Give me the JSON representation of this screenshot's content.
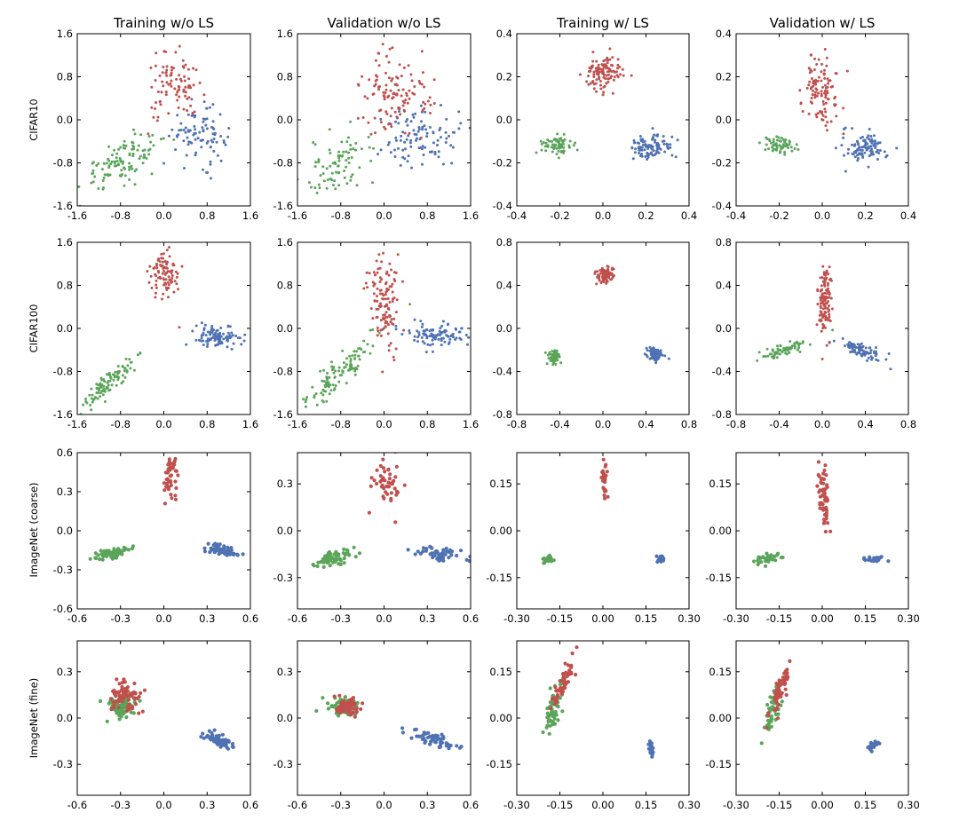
{
  "colors": {
    "red": "#c0504d",
    "blue": "#4f72b3",
    "green": "#5aa55a"
  },
  "col_titles": [
    "Training w/o LS",
    "Validation w/o LS",
    "Training w/ LS",
    "Validation w/ LS"
  ],
  "row_labels": [
    "CIFAR10",
    "CIFAR100",
    "ImageNet (coarse)",
    "ImageNet (fine)"
  ],
  "chart_data": [
    {
      "type": "scatter",
      "row": 0,
      "col": 0,
      "xlim": [
        -1.6,
        1.6
      ],
      "ylim": [
        -1.6,
        1.6
      ],
      "xticks": [
        "-1.6",
        "-0.8",
        "0.0",
        "0.8",
        "1.6"
      ],
      "yticks": [
        "1.6",
        "0.8",
        "0.0",
        "-0.8",
        "-1.6"
      ],
      "clusters": {
        "red": {
          "cx": 0.2,
          "cy": 0.6,
          "sx": 0.25,
          "sy": 0.3,
          "n": 90
        },
        "blue": {
          "cx": 0.65,
          "cy": -0.3,
          "sx": 0.25,
          "sy": 0.25,
          "n": 90
        },
        "green": {
          "cx": -0.75,
          "cy": -0.75,
          "sx": 0.4,
          "sy": 0.25,
          "rho": 0.6,
          "n": 110
        }
      }
    },
    {
      "type": "scatter",
      "row": 0,
      "col": 1,
      "xlim": [
        -1.6,
        1.6
      ],
      "ylim": [
        -1.6,
        1.6
      ],
      "xticks": [
        "-1.6",
        "-0.8",
        "0.0",
        "0.8",
        "1.6"
      ],
      "yticks": [
        "1.6",
        "0.8",
        "0.0",
        "-0.8",
        "-1.6"
      ],
      "clusters": {
        "red": {
          "cx": 0.2,
          "cy": 0.5,
          "sx": 0.3,
          "sy": 0.4,
          "n": 120
        },
        "blue": {
          "cx": 0.75,
          "cy": -0.35,
          "sx": 0.35,
          "sy": 0.3,
          "n": 100
        },
        "green": {
          "cx": -0.85,
          "cy": -0.85,
          "sx": 0.35,
          "sy": 0.3,
          "rho": 0.4,
          "n": 80
        }
      }
    },
    {
      "type": "scatter",
      "row": 0,
      "col": 2,
      "xlim": [
        -0.4,
        0.4
      ],
      "ylim": [
        -0.4,
        0.4
      ],
      "xticks": [
        "-0.4",
        "-0.2",
        "0.0",
        "0.2",
        "0.4"
      ],
      "yticks": [
        "0.4",
        "0.2",
        "0.0",
        "-0.2",
        "-0.4"
      ],
      "clusters": {
        "red": {
          "cx": 0.0,
          "cy": 0.22,
          "sx": 0.045,
          "sy": 0.045,
          "n": 110
        },
        "blue": {
          "cx": 0.22,
          "cy": -0.13,
          "sx": 0.045,
          "sy": 0.03,
          "n": 100
        },
        "green": {
          "cx": -0.22,
          "cy": -0.12,
          "sx": 0.035,
          "sy": 0.02,
          "n": 70
        }
      }
    },
    {
      "type": "scatter",
      "row": 0,
      "col": 3,
      "xlim": [
        -0.4,
        0.4
      ],
      "ylim": [
        -0.4,
        0.4
      ],
      "xticks": [
        "-0.4",
        "-0.2",
        "0.0",
        "0.2",
        "0.4"
      ],
      "yticks": [
        "0.4",
        "0.2",
        "0.0",
        "-0.2",
        "-0.4"
      ],
      "clusters": {
        "red": {
          "cx": 0.0,
          "cy": 0.15,
          "sx": 0.04,
          "sy": 0.09,
          "n": 110
        },
        "blue": {
          "cx": 0.2,
          "cy": -0.13,
          "sx": 0.05,
          "sy": 0.035,
          "n": 100
        },
        "green": {
          "cx": -0.2,
          "cy": -0.12,
          "sx": 0.04,
          "sy": 0.02,
          "n": 60
        }
      }
    },
    {
      "type": "scatter",
      "row": 1,
      "col": 0,
      "xlim": [
        -1.6,
        1.6
      ],
      "ylim": [
        -1.6,
        1.6
      ],
      "xticks": [
        "-1.6",
        "-0.8",
        "0.0",
        "0.8",
        "1.6"
      ],
      "yticks": [
        "1.6",
        "0.8",
        "0.0",
        "-0.8",
        "-1.6"
      ],
      "clusters": {
        "red": {
          "cx": 0.0,
          "cy": 1.0,
          "sx": 0.15,
          "sy": 0.22,
          "n": 90
        },
        "blue": {
          "cx": 1.0,
          "cy": -0.15,
          "sx": 0.22,
          "sy": 0.1,
          "n": 100
        },
        "green": {
          "cx": -1.0,
          "cy": -1.0,
          "sx": 0.25,
          "sy": 0.25,
          "rho": 0.9,
          "n": 100
        }
      }
    },
    {
      "type": "scatter",
      "row": 1,
      "col": 1,
      "xlim": [
        -1.6,
        1.6
      ],
      "ylim": [
        -1.6,
        1.6
      ],
      "xticks": [
        "-1.6",
        "-0.8",
        "0.0",
        "0.8",
        "1.6"
      ],
      "yticks": [
        "1.6",
        "0.8",
        "0.0",
        "-0.8",
        "-1.6"
      ],
      "clusters": {
        "red": {
          "cx": 0.0,
          "cy": 0.5,
          "sx": 0.15,
          "sy": 0.4,
          "rho": -0.3,
          "n": 120
        },
        "blue": {
          "cx": 0.95,
          "cy": -0.1,
          "sx": 0.3,
          "sy": 0.12,
          "n": 100
        },
        "green": {
          "cx": -0.85,
          "cy": -0.85,
          "sx": 0.35,
          "sy": 0.35,
          "rho": 0.92,
          "n": 110
        }
      }
    },
    {
      "type": "scatter",
      "row": 1,
      "col": 2,
      "xlim": [
        -0.8,
        0.8
      ],
      "ylim": [
        -0.8,
        0.8
      ],
      "xticks": [
        "-0.8",
        "-0.4",
        "0.0",
        "0.4",
        "0.8"
      ],
      "yticks": [
        "0.8",
        "0.4",
        "0.0",
        "-0.4",
        "-0.8"
      ],
      "clusters": {
        "red": {
          "cx": 0.02,
          "cy": 0.5,
          "sx": 0.04,
          "sy": 0.035,
          "n": 90
        },
        "blue": {
          "cx": 0.48,
          "cy": -0.24,
          "sx": 0.035,
          "sy": 0.03,
          "n": 90
        },
        "green": {
          "cx": -0.45,
          "cy": -0.26,
          "sx": 0.025,
          "sy": 0.03,
          "n": 70
        }
      }
    },
    {
      "type": "scatter",
      "row": 1,
      "col": 3,
      "xlim": [
        -0.8,
        0.8
      ],
      "ylim": [
        -0.8,
        0.8
      ],
      "xticks": [
        "-0.8",
        "-0.4",
        "0.0",
        "0.4",
        "0.8"
      ],
      "yticks": [
        "0.8",
        "0.4",
        "0.0",
        "-0.4",
        "-0.8"
      ],
      "clusters": {
        "red": {
          "cx": 0.02,
          "cy": 0.25,
          "sx": 0.035,
          "sy": 0.18,
          "n": 120
        },
        "blue": {
          "cx": 0.35,
          "cy": -0.2,
          "sx": 0.11,
          "sy": 0.05,
          "rho": -0.8,
          "n": 90
        },
        "green": {
          "cx": -0.35,
          "cy": -0.2,
          "sx": 0.12,
          "sy": 0.05,
          "rho": 0.8,
          "n": 70
        }
      }
    },
    {
      "type": "scatter",
      "row": 2,
      "col": 0,
      "xlim": [
        -0.6,
        0.6
      ],
      "ylim": [
        -0.6,
        0.6
      ],
      "xticks": [
        "-0.6",
        "-0.3",
        "0.0",
        "0.3",
        "0.6"
      ],
      "yticks": [
        "0.6",
        "0.3",
        "0.0",
        "-0.3",
        "-0.6"
      ],
      "clusters": {
        "red": {
          "cx": 0.05,
          "cy": 0.4,
          "sx": 0.025,
          "sy": 0.1,
          "n": 45
        },
        "blue": {
          "cx": 0.4,
          "cy": -0.15,
          "sx": 0.06,
          "sy": 0.025,
          "rho": -0.5,
          "n": 60
        },
        "green": {
          "cx": -0.35,
          "cy": -0.17,
          "sx": 0.07,
          "sy": 0.025,
          "rho": 0.7,
          "n": 60
        }
      }
    },
    {
      "type": "scatter",
      "row": 2,
      "col": 1,
      "xlim": [
        -0.6,
        0.6
      ],
      "ylim": [
        -0.5,
        0.5
      ],
      "xticks": [
        "-0.6",
        "-0.3",
        "0.0",
        "0.3",
        "0.6"
      ],
      "yticks": [
        "0.3",
        "0.0",
        "-0.3"
      ],
      "clusters": {
        "red": {
          "cx": 0.02,
          "cy": 0.3,
          "sx": 0.04,
          "sy": 0.1,
          "n": 50
        },
        "blue": {
          "cx": 0.38,
          "cy": -0.15,
          "sx": 0.08,
          "sy": 0.025,
          "rho": -0.4,
          "n": 55
        },
        "green": {
          "cx": -0.33,
          "cy": -0.17,
          "sx": 0.07,
          "sy": 0.03,
          "rho": 0.6,
          "n": 60
        }
      }
    },
    {
      "type": "scatter",
      "row": 2,
      "col": 2,
      "xlim": [
        -0.3,
        0.3
      ],
      "ylim": [
        -0.25,
        0.25
      ],
      "xticks": [
        "-0.30",
        "-0.15",
        "0.00",
        "0.15",
        "0.30"
      ],
      "yticks": [
        "0.15",
        "0.00",
        "-0.15"
      ],
      "clusters": {
        "red": {
          "cx": 0.005,
          "cy": 0.17,
          "sx": 0.006,
          "sy": 0.025,
          "n": 30
        },
        "blue": {
          "cx": 0.2,
          "cy": -0.09,
          "sx": 0.006,
          "sy": 0.006,
          "n": 25
        },
        "green": {
          "cx": -0.19,
          "cy": -0.09,
          "sx": 0.008,
          "sy": 0.006,
          "n": 30
        }
      }
    },
    {
      "type": "scatter",
      "row": 2,
      "col": 3,
      "xlim": [
        -0.3,
        0.3
      ],
      "ylim": [
        -0.25,
        0.25
      ],
      "xticks": [
        "-0.30",
        "-0.15",
        "0.00",
        "0.15",
        "0.30"
      ],
      "yticks": [
        "0.15",
        "0.00",
        "-0.15"
      ],
      "clusters": {
        "red": {
          "cx": 0.005,
          "cy": 0.12,
          "sx": 0.01,
          "sy": 0.06,
          "n": 55
        },
        "blue": {
          "cx": 0.18,
          "cy": -0.09,
          "sx": 0.015,
          "sy": 0.005,
          "n": 25
        },
        "green": {
          "cx": -0.2,
          "cy": -0.09,
          "sx": 0.025,
          "sy": 0.01,
          "rho": 0.6,
          "n": 35
        }
      }
    },
    {
      "type": "scatter",
      "row": 3,
      "col": 0,
      "xlim": [
        -0.6,
        0.6
      ],
      "ylim": [
        -0.5,
        0.5
      ],
      "xticks": [
        "-0.6",
        "-0.3",
        "0.0",
        "0.3",
        "0.6"
      ],
      "yticks": [
        "0.3",
        "0.0",
        "-0.3"
      ],
      "clusters": {
        "red": {
          "cx": -0.27,
          "cy": 0.13,
          "sx": 0.05,
          "sy": 0.05,
          "n": 70
        },
        "blue": {
          "cx": 0.38,
          "cy": -0.14,
          "sx": 0.05,
          "sy": 0.025,
          "rho": -0.7,
          "n": 60
        },
        "green": {
          "cx": -0.3,
          "cy": 0.07,
          "sx": 0.05,
          "sy": 0.035,
          "n": 70
        }
      }
    },
    {
      "type": "scatter",
      "row": 3,
      "col": 1,
      "xlim": [
        -0.6,
        0.6
      ],
      "ylim": [
        -0.5,
        0.5
      ],
      "xticks": [
        "-0.6",
        "-0.3",
        "0.0",
        "0.3",
        "0.6"
      ],
      "yticks": [
        "0.3",
        "0.0",
        "-0.3"
      ],
      "clusters": {
        "red": {
          "cx": -0.25,
          "cy": 0.08,
          "sx": 0.04,
          "sy": 0.03,
          "n": 70
        },
        "blue": {
          "cx": 0.35,
          "cy": -0.14,
          "sx": 0.08,
          "sy": 0.03,
          "rho": -0.6,
          "n": 55
        },
        "green": {
          "cx": -0.28,
          "cy": 0.07,
          "sx": 0.06,
          "sy": 0.03,
          "n": 60
        }
      }
    },
    {
      "type": "scatter",
      "row": 3,
      "col": 2,
      "xlim": [
        -0.3,
        0.3
      ],
      "ylim": [
        -0.25,
        0.25
      ],
      "xticks": [
        "-0.30",
        "-0.15",
        "0.00",
        "0.15",
        "0.30"
      ],
      "yticks": [
        "0.15",
        "0.00",
        "-0.15"
      ],
      "clusters": {
        "red": {
          "cx": -0.14,
          "cy": 0.11,
          "sx": 0.02,
          "sy": 0.04,
          "rho": 0.9,
          "n": 60
        },
        "blue": {
          "cx": 0.17,
          "cy": -0.1,
          "sx": 0.004,
          "sy": 0.012,
          "n": 25
        },
        "green": {
          "cx": -0.17,
          "cy": 0.03,
          "sx": 0.015,
          "sy": 0.04,
          "rho": 0.7,
          "n": 55
        }
      }
    },
    {
      "type": "scatter",
      "row": 3,
      "col": 3,
      "xlim": [
        -0.3,
        0.3
      ],
      "ylim": [
        -0.25,
        0.25
      ],
      "xticks": [
        "-0.30",
        "-0.15",
        "0.00",
        "0.15",
        "0.30"
      ],
      "yticks": [
        "0.15",
        "0.00",
        "-0.15"
      ],
      "clusters": {
        "red": {
          "cx": -0.15,
          "cy": 0.08,
          "sx": 0.018,
          "sy": 0.04,
          "rho": 0.85,
          "n": 60
        },
        "blue": {
          "cx": 0.18,
          "cy": -0.09,
          "sx": 0.015,
          "sy": 0.012,
          "n": 25
        },
        "green": {
          "cx": -0.17,
          "cy": 0.03,
          "sx": 0.015,
          "sy": 0.04,
          "rho": 0.6,
          "n": 50
        }
      }
    }
  ]
}
